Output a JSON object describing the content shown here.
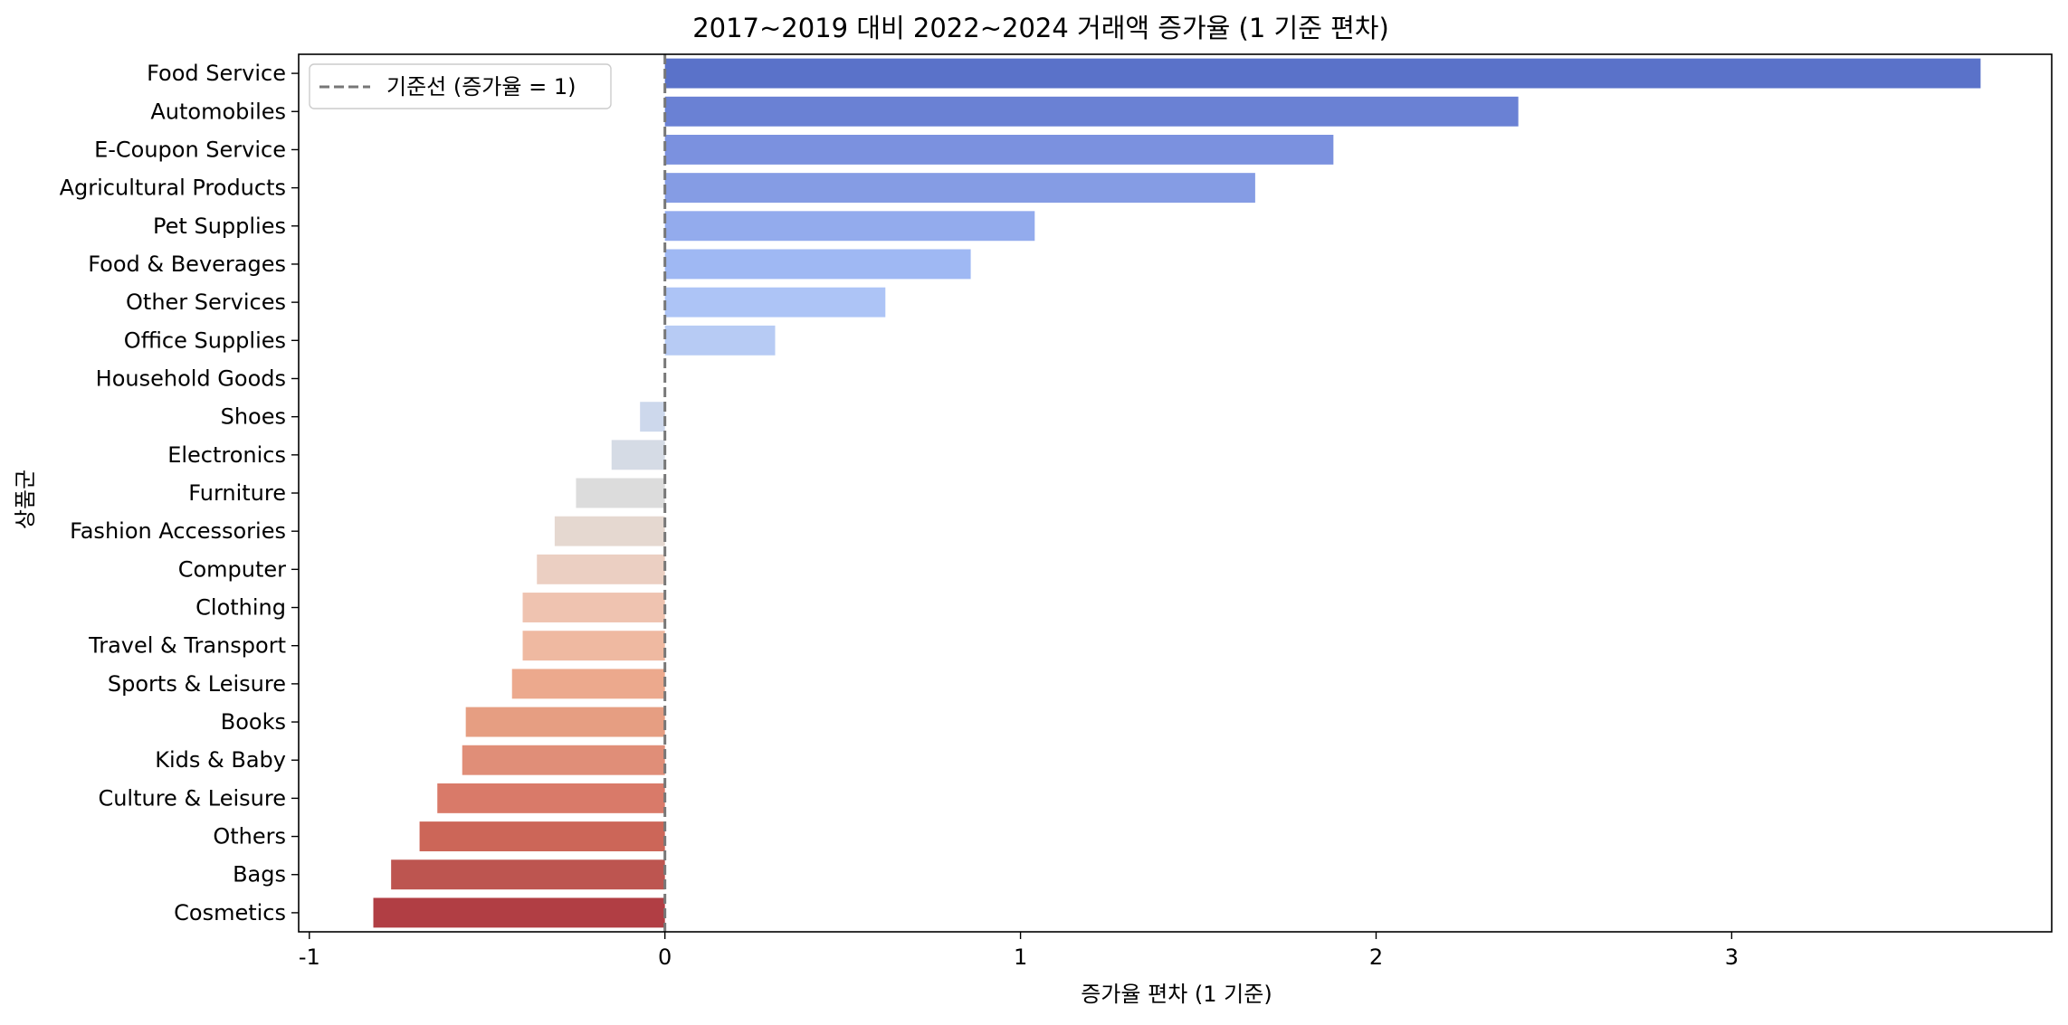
{
  "chart_data": {
    "type": "bar",
    "orientation": "horizontal",
    "title": "2017~2019 대비 2022~2024 거래액 증가율 (1 기준 편차)",
    "xlabel": "증가율 편차 (1 기준)",
    "ylabel": "상품군",
    "xlim": [
      -1.03,
      3.9
    ],
    "xticks": [
      -1,
      0,
      1,
      2,
      3
    ],
    "xtick_labels": [
      "-1",
      "0",
      "1",
      "2",
      "3"
    ],
    "grid": false,
    "categories": [
      "Food Service",
      "Automobiles",
      "E-Coupon Service",
      "Agricultural Products",
      "Pet Supplies",
      "Food & Beverages",
      "Other Services",
      "Office Supplies",
      "Household Goods",
      "Shoes",
      "Electronics",
      "Furniture",
      "Fashion Accessories",
      "Computer",
      "Clothing",
      "Travel & Transport",
      "Sports & Leisure",
      "Books",
      "Kids & Baby",
      "Culture & Leisure",
      "Others",
      "Bags",
      "Cosmetics"
    ],
    "values": [
      3.7,
      2.4,
      1.88,
      1.66,
      1.04,
      0.86,
      0.62,
      0.31,
      0.0,
      -0.07,
      -0.15,
      -0.25,
      -0.31,
      -0.36,
      -0.4,
      -0.4,
      -0.43,
      -0.56,
      -0.57,
      -0.64,
      -0.69,
      -0.77,
      -0.82
    ],
    "colors": [
      "#5a72c9",
      "#6a81d4",
      "#7b91df",
      "#859ce4",
      "#93abed",
      "#9fb8f3",
      "#adc4f6",
      "#b7cbf4",
      "#c5d4ef",
      "#cdd8ec",
      "#d5dbe5",
      "#dcdcdc",
      "#e5d8d0",
      "#ebcfc2",
      "#efc3b0",
      "#efb9a1",
      "#eca98d",
      "#e69e82",
      "#e08e78",
      "#d97a69",
      "#cc6658",
      "#bd5550",
      "#b13e44"
    ],
    "reference_line": {
      "x": 0,
      "style": "dashed",
      "color": "#777777",
      "label": "기준선 (증가율 = 1)"
    },
    "legend": {
      "placement": "upper-left",
      "entries": [
        "기준선 (증가율 = 1)"
      ]
    }
  }
}
